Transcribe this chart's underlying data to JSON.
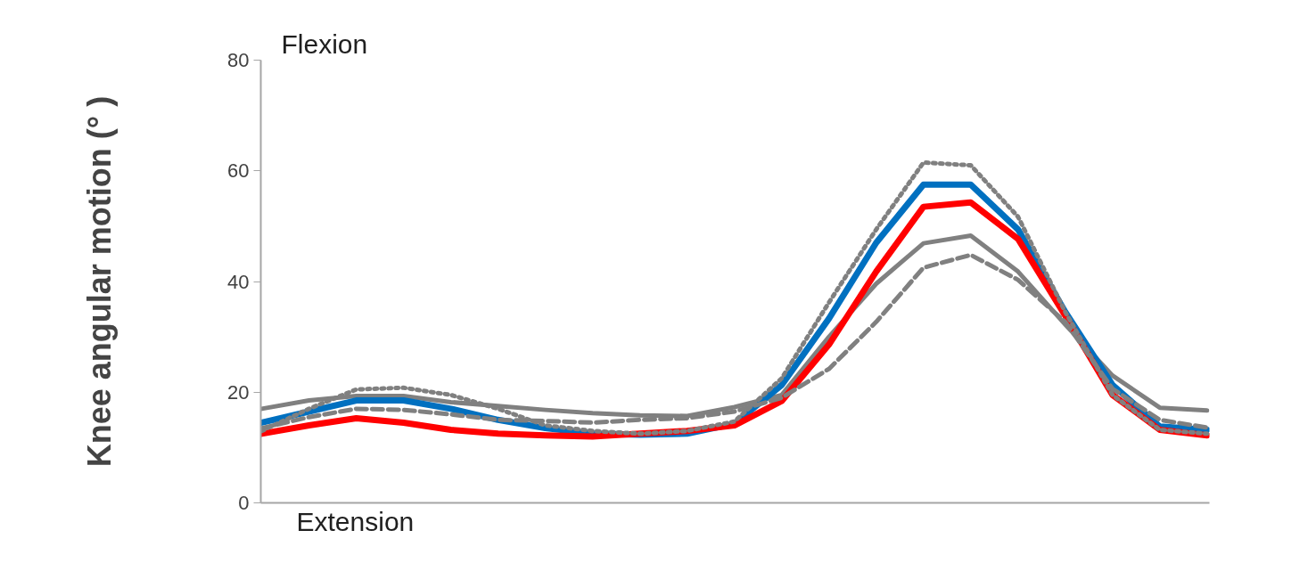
{
  "chart_data": {
    "type": "line",
    "ylabel": "Knee angular motion (° )",
    "annotations": [
      "Flexion",
      "Extension"
    ],
    "categories": [
      null,
      null,
      null,
      null,
      null,
      null,
      null,
      null,
      null,
      null,
      null,
      null,
      null,
      null,
      null,
      null,
      null,
      null,
      null,
      null,
      null
    ],
    "series": [
      {
        "color": "#808080",
        "line_style": "solid",
        "values": [
          17,
          18.5,
          19.3,
          19.3,
          18.2,
          17.5,
          16.8,
          16.2,
          15.8,
          15.7,
          17.3,
          19.5,
          30,
          39.6,
          46.9,
          48.3,
          41.8,
          32.2,
          23,
          17.2,
          16.7
        ]
      },
      {
        "color": "#0070c0",
        "line_style": "solid",
        "values": [
          14.5,
          16.5,
          18.5,
          18.5,
          17,
          15,
          13.5,
          12.5,
          12.3,
          12.5,
          14.3,
          21.3,
          33.3,
          47,
          57.5,
          57.5,
          49.4,
          34.5,
          21.3,
          13.8,
          13.2
        ]
      },
      {
        "color": "#ff0000",
        "line_style": "solid",
        "values": [
          12.5,
          14,
          15.3,
          14.5,
          13.2,
          12.5,
          12.2,
          12,
          12.5,
          13,
          14,
          18.4,
          28.6,
          41.8,
          53.5,
          54.3,
          47.7,
          33.8,
          19.5,
          13.2,
          12.2
        ]
      },
      {
        "color": "#808080",
        "line_style": "dashed",
        "values": [
          13.5,
          15.5,
          17,
          16.8,
          16,
          15,
          14.8,
          14.5,
          15,
          15.3,
          16.5,
          19,
          24.2,
          32.7,
          42.5,
          44.8,
          40.3,
          32.7,
          20.6,
          15,
          13.6
        ]
      },
      {
        "color": "#808080",
        "line_style": "dotted",
        "values": [
          13,
          17,
          20.5,
          20.8,
          19.5,
          17,
          14,
          13,
          12.5,
          13,
          14.7,
          22.5,
          36.2,
          49.4,
          61.5,
          61,
          51.7,
          34.5,
          19.5,
          13.2,
          12.5
        ]
      }
    ],
    "ylim": [
      0,
      80
    ],
    "yticks": [
      0,
      20,
      40,
      60,
      80
    ],
    "tick_labels": "y",
    "grid": false,
    "marker": "none"
  }
}
